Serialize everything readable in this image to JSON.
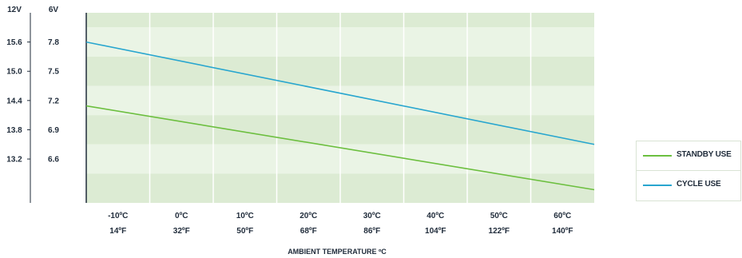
{
  "chart_data": {
    "type": "line",
    "y_axis_left_header": "12V",
    "y_axis_right_header": "6V",
    "y_ticks_12v": [
      "15.6",
      "15.0",
      "14.4",
      "13.8",
      "13.2"
    ],
    "y_ticks_6v": [
      "7.8",
      "7.5",
      "7.2",
      "6.9",
      "6.6"
    ],
    "x_ticks": [
      {
        "c": "-10ºC",
        "f": "14ºF"
      },
      {
        "c": "0ºC",
        "f": "32ºF"
      },
      {
        "c": "10ºC",
        "f": "50ºF"
      },
      {
        "c": "20ºC",
        "f": "68ºF"
      },
      {
        "c": "30ºC",
        "f": "86ºF"
      },
      {
        "c": "40ºC",
        "f": "104ºF"
      },
      {
        "c": "50ºC",
        "f": "122ºF"
      },
      {
        "c": "60ºC",
        "f": "140ºF"
      }
    ],
    "xlabel": "AMBIENT TEMPERATURE ºC",
    "x_range_c": [
      -15,
      65
    ],
    "ylim_12v": [
      12.3,
      16.2
    ],
    "series": [
      {
        "name": "STANDBY USE",
        "color": "#6cbf3f",
        "x_c": [
          -15,
          65
        ],
        "y_12v": [
          14.29,
          12.57
        ]
      },
      {
        "name": "CYCLE USE",
        "color": "#28a6cf",
        "x_c": [
          -15,
          65
        ],
        "y_12v": [
          15.6,
          13.5
        ]
      }
    ],
    "grid": true,
    "legend_position": "right",
    "band_colors": [
      "#dcebd3",
      "#eaf4e5"
    ]
  }
}
